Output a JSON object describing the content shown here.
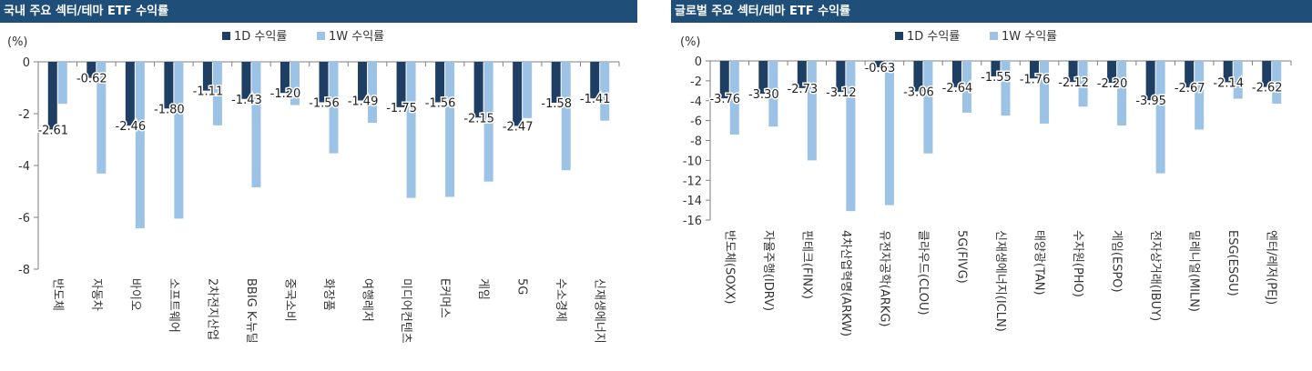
{
  "colors": {
    "series_1d": "#1f3e63",
    "series_1w": "#9cc2e5",
    "title_bar": "#1f4e79"
  },
  "chart_data": [
    {
      "type": "bar",
      "title": "국내 주요 섹터/테마 ETF 수익률",
      "ylabel": "(%)",
      "ylim": [
        -8,
        0
      ],
      "yticks": [
        0,
        -2,
        -4,
        -6,
        -8
      ],
      "legend_position": "top-center",
      "categories": [
        "반도체",
        "자동차",
        "바이오",
        "소프트웨어",
        "2차전지산업",
        "BBIG K-뉴딜",
        "중국소비",
        "화장품",
        "여행레저",
        "미디어컨텐츠",
        "E커머스",
        "게임",
        "5G",
        "수소경제",
        "신재생에너지"
      ],
      "series": [
        {
          "name": "1D 수익률",
          "values": [
            -2.61,
            -0.62,
            -2.46,
            -1.8,
            -1.11,
            -1.43,
            -1.2,
            -1.56,
            -1.49,
            -1.75,
            -1.56,
            -2.15,
            -2.47,
            -1.58,
            -1.41
          ],
          "labels": [
            "-2.61",
            "-0.62",
            "-2.46",
            "-1.80",
            "-1.11",
            "-1.43",
            "-1.20",
            "-1.56",
            "-1.49",
            "-1.75",
            "-1.56",
            "-2.15",
            "-2.47",
            "-1.58",
            "-1.41"
          ]
        },
        {
          "name": "1W 수익률",
          "values": [
            -1.62,
            -4.31,
            -6.42,
            -6.05,
            -2.45,
            -4.84,
            -1.67,
            -3.53,
            -2.35,
            -5.25,
            -5.21,
            -4.62,
            -2.17,
            -4.18,
            -2.27
          ]
        }
      ]
    },
    {
      "type": "bar",
      "title": "글로벌 주요 섹터/테마 ETF 수익률",
      "ylabel": "(%)",
      "ylim": [
        -16,
        0
      ],
      "yticks": [
        0,
        -2,
        -4,
        -6,
        -8,
        -10,
        -12,
        -14,
        -16
      ],
      "legend_position": "top-center",
      "categories": [
        "반도체(SOXX)",
        "자율주행(IDRV)",
        "핀테크(FINX)",
        "4차산업혁명(ARKW)",
        "유전자공학(ARKG)",
        "클라우드(CLOU)",
        "5G(FIVG)",
        "신재생에너지(ICLN)",
        "태양광(TAN)",
        "수자원(PHO)",
        "게임(ESPO)",
        "전자상거래(IBUY)",
        "밀레니얼(MILN)",
        "ESG(ESGU)",
        "엔터/레저(PEJ)"
      ],
      "series": [
        {
          "name": "1D 수익률",
          "values": [
            -3.76,
            -3.3,
            -2.73,
            -3.12,
            -0.63,
            -3.06,
            -2.64,
            -1.55,
            -1.76,
            -2.12,
            -2.2,
            -3.95,
            -2.67,
            -2.14,
            -2.62
          ],
          "labels": [
            "-3.76",
            "-3.30",
            "-2.73",
            "-3.12",
            "-0.63",
            "-3.06",
            "-2.64",
            "-1.55",
            "-1.76",
            "-2.12",
            "-2.20",
            "-3.95",
            "-2.67",
            "-2.14",
            "-2.62"
          ]
        },
        {
          "name": "1W 수익률",
          "values": [
            -7.4,
            -6.6,
            -10.0,
            -15.1,
            -14.5,
            -9.3,
            -5.2,
            -5.5,
            -6.3,
            -4.6,
            -6.5,
            -11.3,
            -6.9,
            -3.8,
            -4.3
          ]
        }
      ]
    }
  ]
}
